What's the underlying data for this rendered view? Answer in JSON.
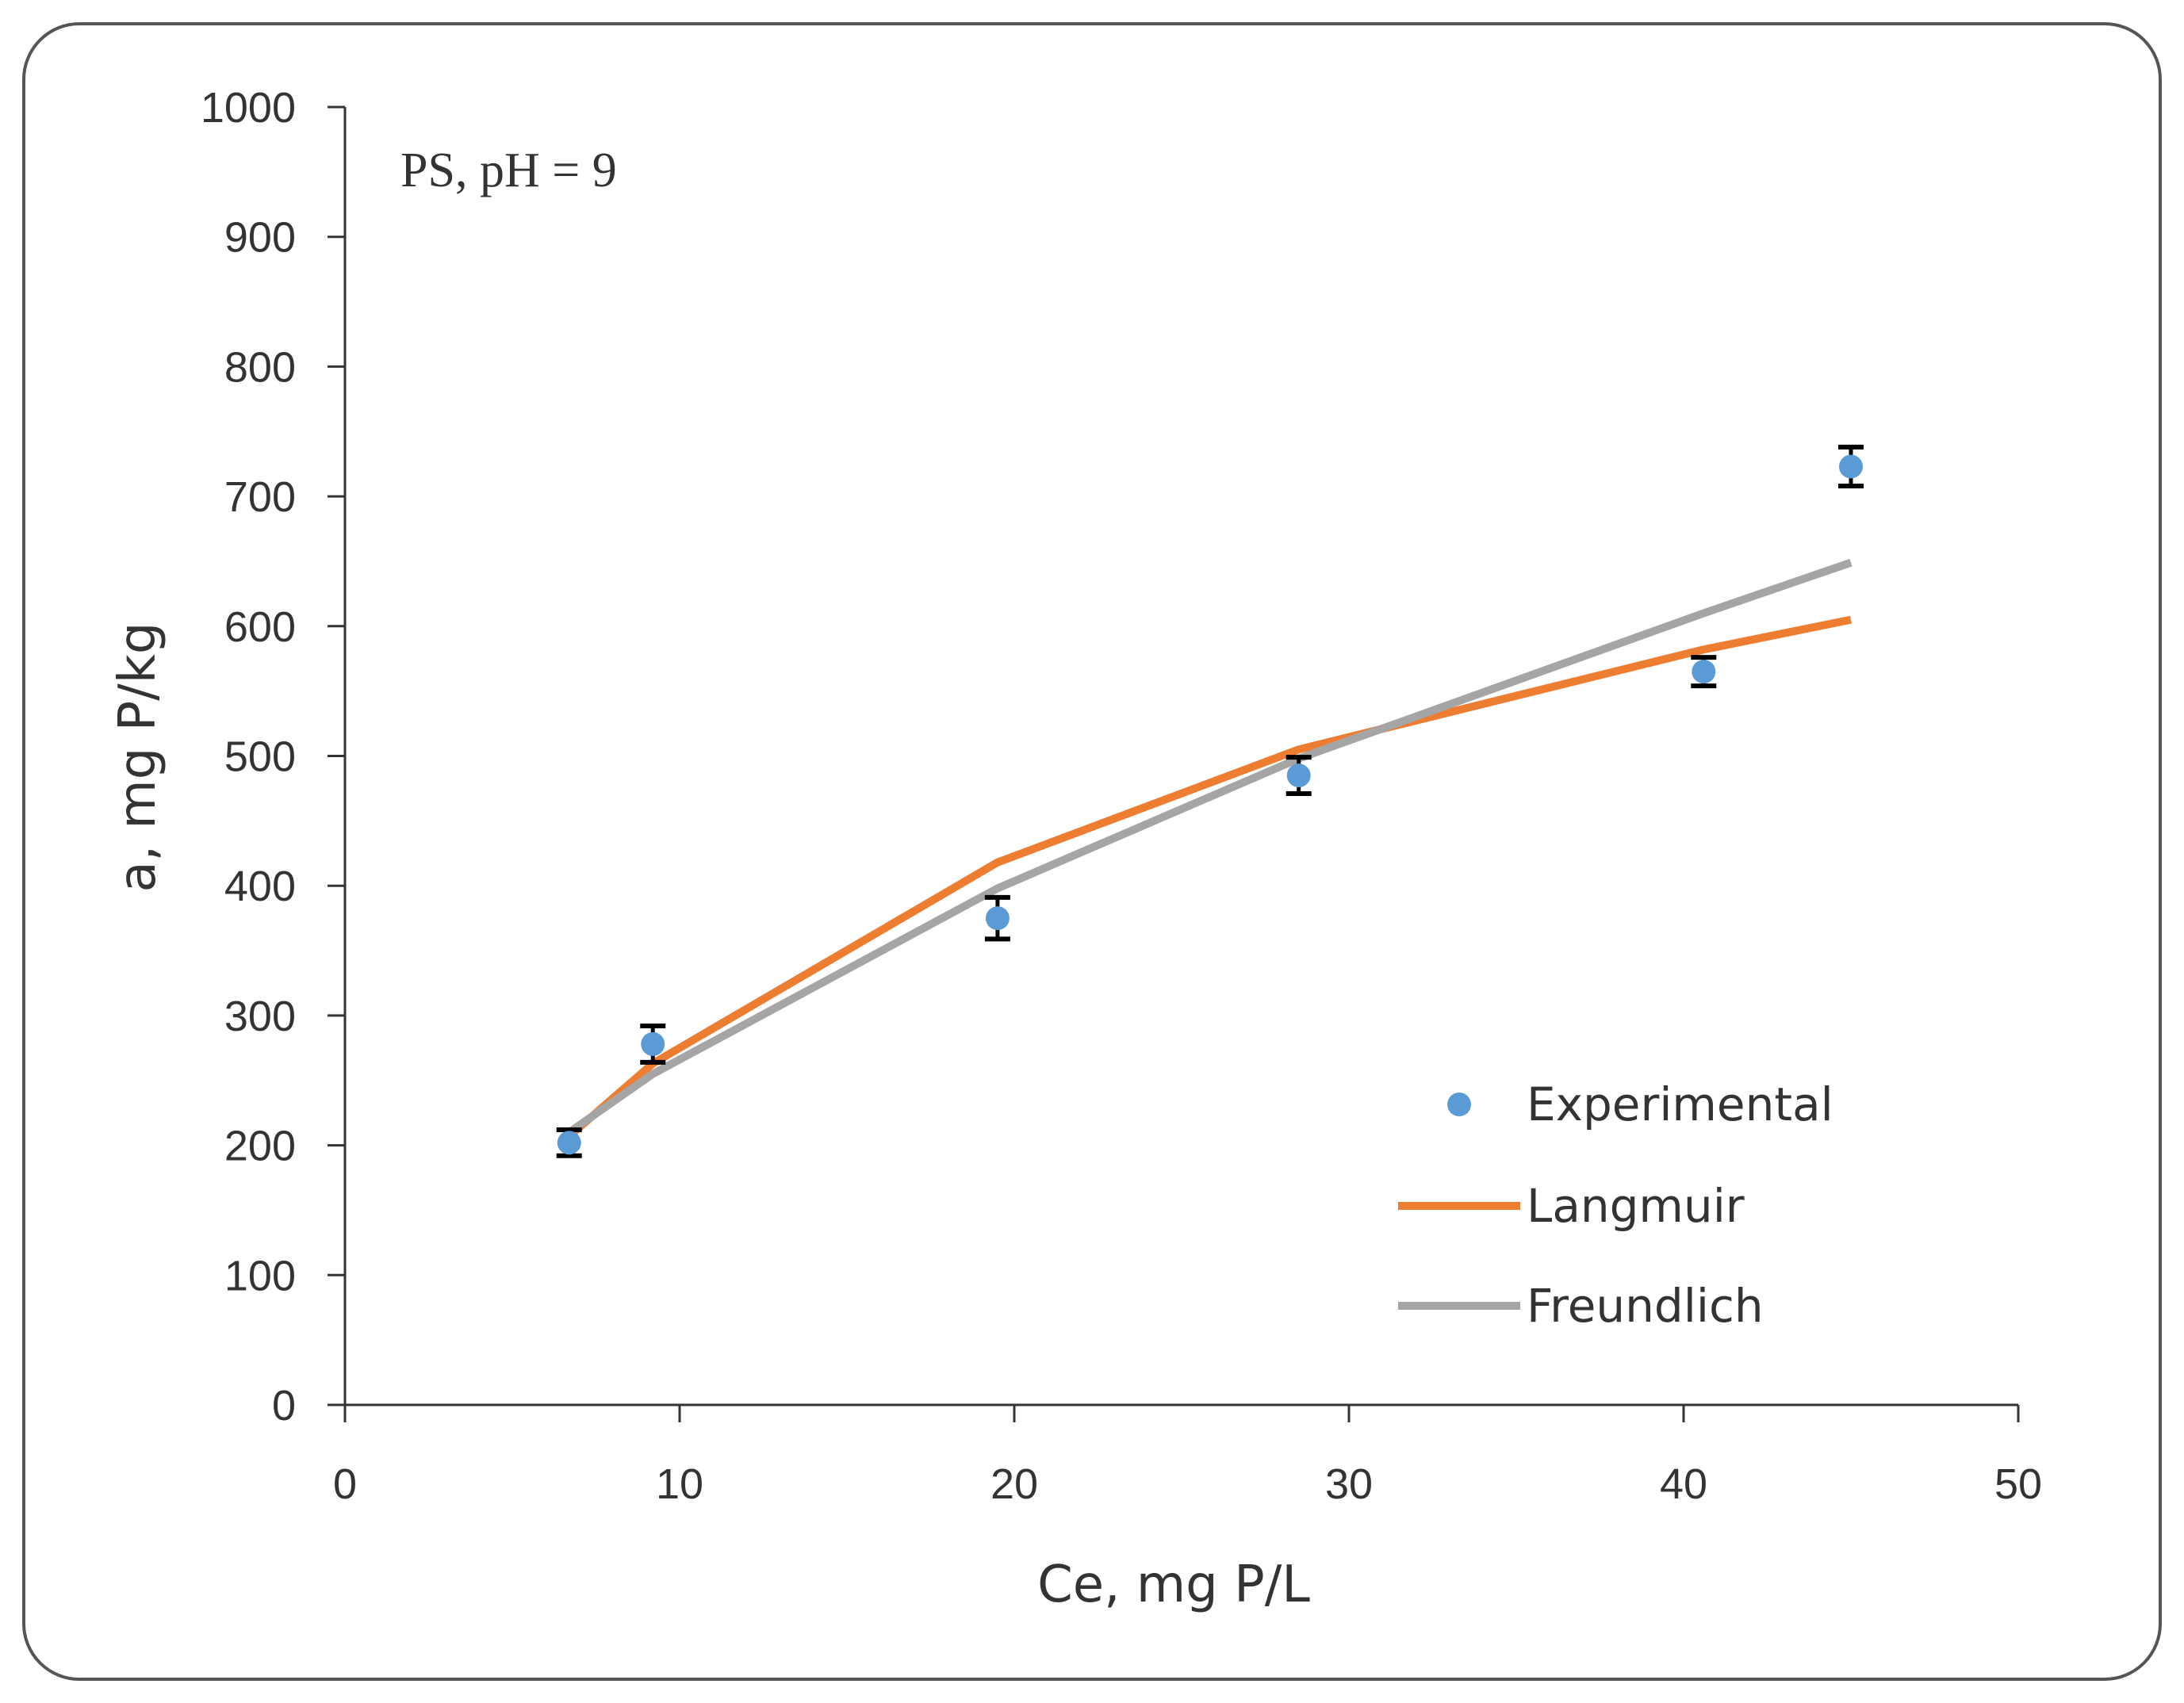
{
  "chart_data": {
    "type": "scatter",
    "title": "",
    "annotation": "PS, pH = 9",
    "xlabel": "Ce, mg P/L",
    "ylabel": "a, mg P/kg",
    "xlim": [
      0,
      50
    ],
    "ylim": [
      0,
      1000
    ],
    "x_ticks": [
      "0",
      "10",
      "20",
      "30",
      "40",
      "50"
    ],
    "y_ticks": [
      "0",
      "100",
      "200",
      "300",
      "400",
      "500",
      "600",
      "700",
      "800",
      "900",
      "1000"
    ],
    "grid": false,
    "legend_position": "bottom-right",
    "series": [
      {
        "name": "Experimental",
        "kind": "scatter",
        "color": "#5b9bd5",
        "x": [
          6.7,
          9.2,
          19.5,
          28.5,
          40.6,
          45.0
        ],
        "y": [
          202,
          278,
          375,
          485,
          565,
          723
        ],
        "error": [
          10,
          14,
          16,
          14,
          11,
          15
        ]
      },
      {
        "name": "Langmuir",
        "kind": "line",
        "color": "#ed7d31",
        "x": [
          6.7,
          9.2,
          19.5,
          28.5,
          40.6,
          45.0
        ],
        "y": [
          207,
          263,
          418,
          505,
          582,
          605
        ]
      },
      {
        "name": "Freundlich",
        "kind": "line",
        "color": "#a5a5a5",
        "x": [
          6.7,
          9.2,
          19.5,
          28.5,
          40.6,
          45.0
        ],
        "y": [
          210,
          255,
          398,
          498,
          610,
          649
        ]
      }
    ]
  }
}
